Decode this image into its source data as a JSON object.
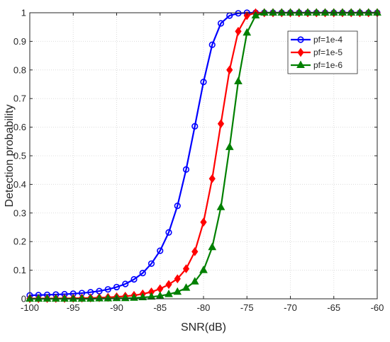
{
  "chart_data": {
    "type": "line",
    "title": "",
    "xlabel": "SNR(dB)",
    "ylabel": "Detection probability",
    "xlim": [
      -100,
      -60
    ],
    "ylim": [
      0,
      1
    ],
    "grid": true,
    "legend_position": "top-right",
    "x_ticks": [
      "-100",
      "-95",
      "-90",
      "-85",
      "-80",
      "-75",
      "-70",
      "-65",
      "-60"
    ],
    "y_ticks": [
      "0",
      "0.1",
      "0.2",
      "0.3",
      "0.4",
      "0.5",
      "0.6",
      "0.7",
      "0.8",
      "0.9",
      "1"
    ],
    "x": [
      -100,
      -99,
      -98,
      -97,
      -96,
      -95,
      -94,
      -93,
      -92,
      -91,
      -90,
      -89,
      -88,
      -87,
      -86,
      -85,
      -84,
      -83,
      -82,
      -81,
      -80,
      -79,
      -78,
      -77,
      -76,
      -75,
      -74,
      -73,
      -72,
      -71,
      -70,
      -69,
      -68,
      -67,
      -66,
      -65,
      -64,
      -63,
      -62,
      -61,
      -60
    ],
    "series": [
      {
        "name": "pf=1e-4",
        "color": "#0000FF",
        "marker": "circle",
        "values": [
          0.012,
          0.013,
          0.014,
          0.015,
          0.016,
          0.018,
          0.02,
          0.023,
          0.027,
          0.033,
          0.041,
          0.052,
          0.068,
          0.09,
          0.123,
          0.168,
          0.232,
          0.325,
          0.452,
          0.603,
          0.758,
          0.888,
          0.963,
          0.99,
          0.998,
          1,
          1,
          1,
          1,
          1,
          1,
          1,
          1,
          1,
          1,
          1,
          1,
          1,
          1,
          1,
          1
        ]
      },
      {
        "name": "pf=1e-5",
        "color": "#FF0000",
        "marker": "diamond",
        "values": [
          0.001,
          0.001,
          0.0012,
          0.0014,
          0.0016,
          0.002,
          0.0025,
          0.003,
          0.004,
          0.005,
          0.007,
          0.009,
          0.012,
          0.017,
          0.024,
          0.035,
          0.05,
          0.07,
          0.105,
          0.165,
          0.268,
          0.42,
          0.612,
          0.8,
          0.935,
          0.99,
          1,
          1,
          1,
          1,
          1,
          1,
          1,
          1,
          1,
          1,
          1,
          1,
          1,
          1,
          1
        ]
      },
      {
        "name": "pf=1e-6",
        "color": "#008000",
        "marker": "triangle",
        "values": [
          0,
          0,
          0,
          0,
          0,
          0,
          0,
          0,
          0.001,
          0.001,
          0.002,
          0.002,
          0.003,
          0.005,
          0.007,
          0.01,
          0.016,
          0.024,
          0.038,
          0.06,
          0.1,
          0.18,
          0.32,
          0.53,
          0.76,
          0.93,
          0.99,
          1,
          1,
          1,
          1,
          1,
          1,
          1,
          1,
          1,
          1,
          1,
          1,
          1,
          1
        ]
      }
    ]
  }
}
